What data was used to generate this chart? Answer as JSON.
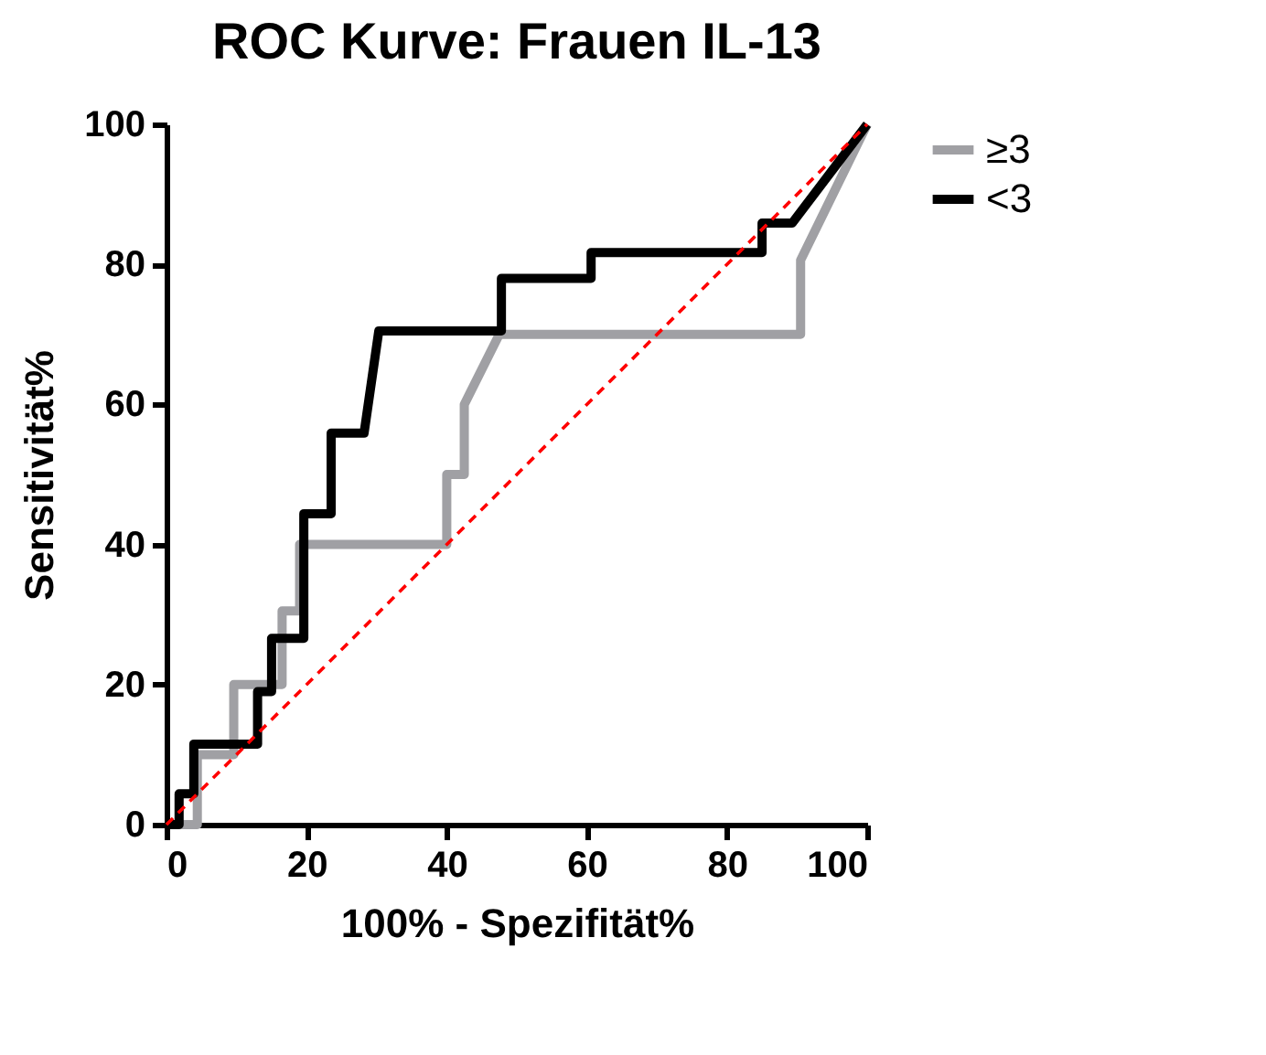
{
  "chart_data": {
    "type": "line",
    "title": "ROC Kurve: Frauen IL-13",
    "xlabel": "100% - Spezifität%",
    "ylabel": "Sensitivität%",
    "xlim": [
      0,
      100
    ],
    "ylim": [
      0,
      100
    ],
    "xticks": [
      0,
      20,
      40,
      60,
      80,
      100
    ],
    "yticks": [
      0,
      20,
      40,
      60,
      80,
      100
    ],
    "grid": false,
    "legend": "top right",
    "marker": "none",
    "series": [
      {
        "name": "≥3",
        "color": "#a0a0a4",
        "line_style": "solid",
        "x": [
          0,
          4.4,
          4.4,
          9.6,
          9.6,
          16.5,
          16.5,
          19,
          19,
          40,
          40,
          42.5,
          42.5,
          47.5,
          90.5,
          90.5,
          100
        ],
        "values": [
          0,
          0,
          10,
          10,
          20,
          20,
          30.5,
          30.5,
          40,
          40,
          50,
          50,
          60,
          70,
          70,
          80.6,
          100
        ]
      },
      {
        "name": "<3",
        "color": "#000000",
        "line_style": "solid",
        "x": [
          0,
          1.8,
          1.8,
          3.9,
          3.9,
          13,
          13,
          15,
          15,
          19.6,
          19.6,
          23.5,
          23.5,
          28.2,
          30.3,
          47.8,
          47.8,
          60.6,
          60.6,
          85,
          85,
          89.3,
          100
        ],
        "values": [
          0,
          0,
          4.4,
          4.4,
          11.5,
          11.5,
          19,
          19,
          26.6,
          26.6,
          44.4,
          44.4,
          55.9,
          55.9,
          70.5,
          70.5,
          78,
          78,
          81.7,
          81.7,
          85.9,
          85.9,
          100
        ]
      },
      {
        "color": "#ff0000",
        "line_style": "dashed",
        "x": [
          0,
          100
        ],
        "values": [
          0,
          100
        ]
      }
    ]
  }
}
